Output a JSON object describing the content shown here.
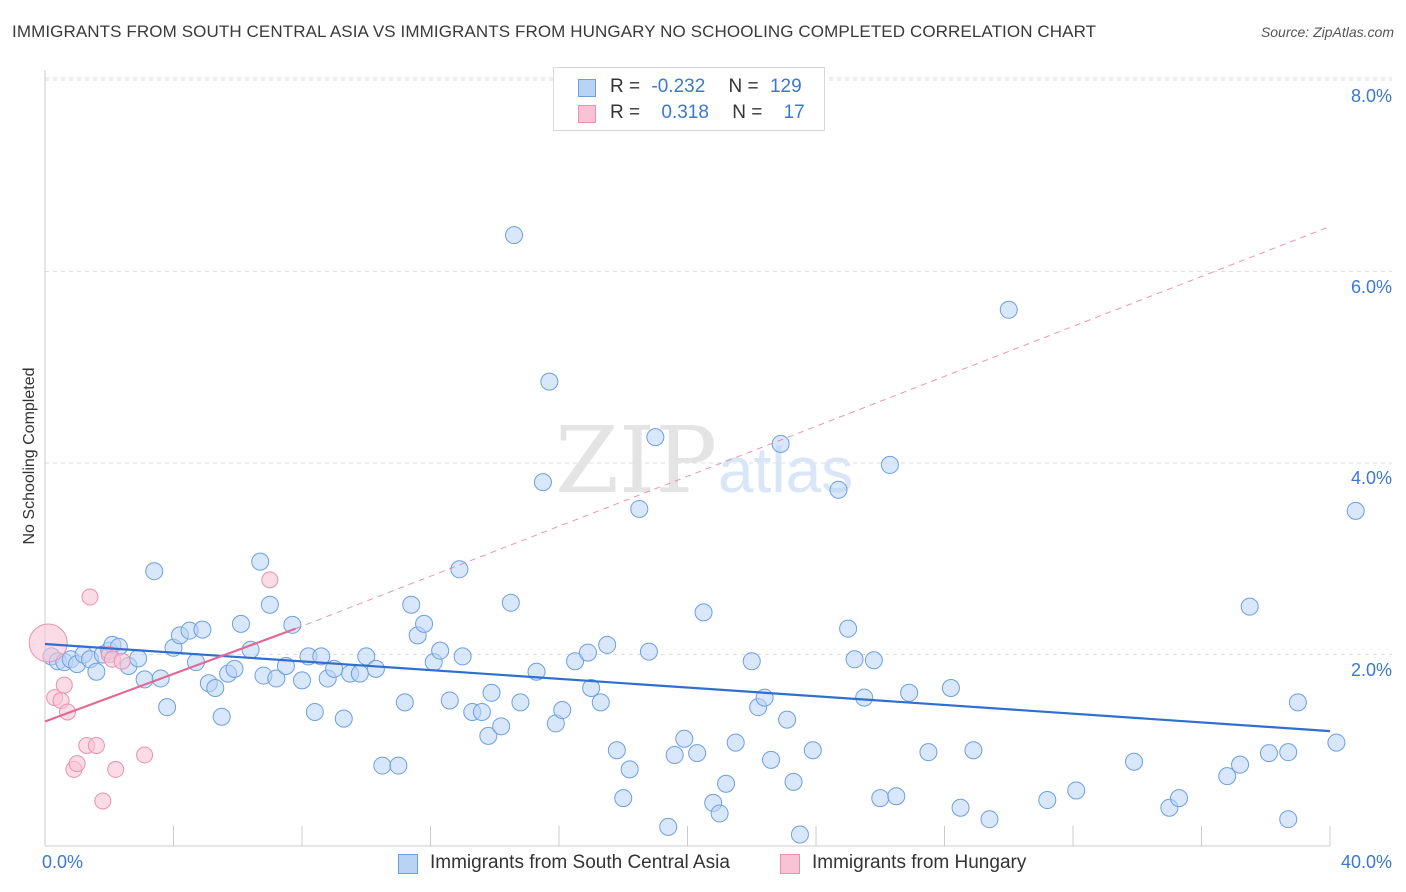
{
  "header": {
    "title": "IMMIGRANTS FROM SOUTH CENTRAL ASIA VS IMMIGRANTS FROM HUNGARY NO SCHOOLING COMPLETED CORRELATION CHART",
    "source": "Source: ZipAtlas.com"
  },
  "watermark": {
    "zip": "ZIP",
    "atlas": "atlas"
  },
  "legend": {
    "rows": [
      {
        "r_label": "R =",
        "r_value": "-0.232",
        "n_label": "N =",
        "n_value": "129"
      },
      {
        "r_label": "R =",
        "r_value": "0.318",
        "n_label": "N =",
        "n_value": "17"
      }
    ]
  },
  "colors": {
    "blue_fill": "#b9d3f5",
    "blue_stroke": "#6d9fe0",
    "blue_line": "#2f6fcf",
    "pink_fill": "#f8c3d4",
    "pink_stroke": "#e892ae",
    "pink_line": "#e06a93",
    "grid": "#dddddd",
    "tick_text": "#3b78d0"
  },
  "chart_data": {
    "type": "scatter",
    "xlabel": "",
    "ylabel": "No Schooling Completed",
    "xlim": [
      0,
      40
    ],
    "ylim": [
      0,
      8
    ],
    "x_tick_labels": [
      "0.0%",
      "40.0%"
    ],
    "y_tick_values": [
      2,
      4,
      6,
      8
    ],
    "y_tick_labels": [
      "2.0%",
      "4.0%",
      "6.0%",
      "8.0%"
    ],
    "grid": "horizontal dashed",
    "legend_placement": "bottom-center",
    "series": [
      {
        "name": "Immigrants from South Central Asia",
        "color": "blue",
        "trend": {
          "x": [
            0,
            40
          ],
          "y": [
            2.11,
            1.2
          ]
        },
        "points": [
          [
            0.2,
            1.98
          ],
          [
            0.4,
            1.93
          ],
          [
            0.6,
            1.92
          ],
          [
            0.8,
            1.95
          ],
          [
            1.0,
            1.9
          ],
          [
            1.2,
            2.0
          ],
          [
            1.4,
            1.95
          ],
          [
            1.6,
            1.82
          ],
          [
            1.8,
            2.0
          ],
          [
            2.0,
            2.04
          ],
          [
            2.1,
            2.1
          ],
          [
            2.3,
            2.08
          ],
          [
            2.6,
            1.88
          ],
          [
            2.9,
            1.96
          ],
          [
            3.1,
            1.74
          ],
          [
            3.4,
            2.87
          ],
          [
            3.6,
            1.75
          ],
          [
            3.8,
            1.45
          ],
          [
            4.0,
            2.07
          ],
          [
            4.2,
            2.2
          ],
          [
            4.5,
            2.25
          ],
          [
            4.7,
            1.92
          ],
          [
            4.9,
            2.26
          ],
          [
            5.1,
            1.7
          ],
          [
            5.3,
            1.65
          ],
          [
            5.5,
            1.35
          ],
          [
            5.7,
            1.8
          ],
          [
            5.9,
            1.85
          ],
          [
            6.1,
            2.32
          ],
          [
            6.4,
            2.05
          ],
          [
            6.7,
            2.97
          ],
          [
            6.8,
            1.78
          ],
          [
            7.0,
            2.52
          ],
          [
            7.2,
            1.75
          ],
          [
            7.5,
            1.88
          ],
          [
            7.7,
            2.31
          ],
          [
            8.0,
            1.73
          ],
          [
            8.2,
            1.98
          ],
          [
            8.4,
            1.4
          ],
          [
            8.6,
            1.98
          ],
          [
            8.8,
            1.75
          ],
          [
            9.0,
            1.85
          ],
          [
            9.3,
            1.33
          ],
          [
            9.5,
            1.8
          ],
          [
            9.8,
            1.8
          ],
          [
            10.0,
            1.98
          ],
          [
            10.3,
            1.85
          ],
          [
            10.5,
            0.84
          ],
          [
            11.0,
            0.84
          ],
          [
            11.2,
            1.5
          ],
          [
            11.4,
            2.52
          ],
          [
            11.6,
            2.2
          ],
          [
            11.8,
            2.32
          ],
          [
            12.1,
            1.92
          ],
          [
            12.3,
            2.04
          ],
          [
            12.6,
            1.52
          ],
          [
            12.9,
            2.89
          ],
          [
            13.0,
            1.98
          ],
          [
            13.3,
            1.4
          ],
          [
            13.6,
            1.4
          ],
          [
            13.8,
            1.15
          ],
          [
            13.9,
            1.6
          ],
          [
            14.2,
            1.25
          ],
          [
            14.5,
            2.54
          ],
          [
            14.6,
            6.38
          ],
          [
            14.8,
            1.5
          ],
          [
            15.3,
            1.82
          ],
          [
            15.5,
            3.8
          ],
          [
            15.7,
            4.85
          ],
          [
            15.9,
            1.28
          ],
          [
            16.1,
            1.42
          ],
          [
            16.5,
            1.93
          ],
          [
            16.9,
            2.02
          ],
          [
            17.0,
            1.65
          ],
          [
            17.3,
            1.5
          ],
          [
            17.5,
            2.1
          ],
          [
            17.8,
            1.0
          ],
          [
            18.0,
            0.5
          ],
          [
            18.2,
            0.8
          ],
          [
            18.5,
            3.52
          ],
          [
            18.8,
            2.03
          ],
          [
            19.0,
            4.27
          ],
          [
            19.4,
            0.2
          ],
          [
            19.6,
            0.95
          ],
          [
            19.9,
            1.12
          ],
          [
            20.3,
            0.97
          ],
          [
            20.5,
            2.44
          ],
          [
            20.8,
            0.45
          ],
          [
            21.0,
            0.34
          ],
          [
            21.2,
            0.65
          ],
          [
            21.5,
            1.08
          ],
          [
            22.0,
            1.93
          ],
          [
            22.2,
            1.45
          ],
          [
            22.4,
            1.55
          ],
          [
            22.6,
            0.9
          ],
          [
            22.9,
            4.2
          ],
          [
            23.1,
            1.32
          ],
          [
            23.3,
            0.67
          ],
          [
            23.5,
            0.12
          ],
          [
            23.9,
            1.0
          ],
          [
            24.7,
            3.72
          ],
          [
            25.0,
            2.27
          ],
          [
            25.2,
            1.95
          ],
          [
            25.5,
            1.55
          ],
          [
            25.8,
            1.94
          ],
          [
            26.0,
            0.5
          ],
          [
            26.3,
            3.98
          ],
          [
            26.5,
            0.52
          ],
          [
            26.9,
            1.6
          ],
          [
            27.5,
            0.98
          ],
          [
            28.2,
            1.65
          ],
          [
            28.5,
            0.4
          ],
          [
            28.9,
            1.0
          ],
          [
            29.4,
            0.28
          ],
          [
            30.0,
            5.6
          ],
          [
            31.2,
            0.48
          ],
          [
            32.1,
            0.58
          ],
          [
            33.9,
            0.88
          ],
          [
            35.0,
            0.4
          ],
          [
            35.3,
            0.5
          ],
          [
            36.8,
            0.73
          ],
          [
            37.2,
            0.85
          ],
          [
            37.5,
            2.5
          ],
          [
            38.1,
            0.97
          ],
          [
            38.7,
            0.98
          ],
          [
            38.7,
            0.28
          ],
          [
            39.0,
            1.5
          ],
          [
            40.2,
            1.08
          ],
          [
            40.8,
            3.5
          ]
        ]
      },
      {
        "name": "Immigrants from Hungary",
        "color": "pink",
        "trend": {
          "x": [
            0,
            7.8
          ],
          "y": [
            1.3,
            2.27
          ],
          "dashed_x": [
            7.8,
            40
          ],
          "dashed_y": [
            2.27,
            6.47
          ]
        },
        "points": [
          [
            0.1,
            2.12
          ],
          [
            0.3,
            1.55
          ],
          [
            0.5,
            1.52
          ],
          [
            0.6,
            1.68
          ],
          [
            0.7,
            1.4
          ],
          [
            0.9,
            0.8
          ],
          [
            1.0,
            0.86
          ],
          [
            1.3,
            1.05
          ],
          [
            1.4,
            2.6
          ],
          [
            1.6,
            1.05
          ],
          [
            1.8,
            0.47
          ],
          [
            2.0,
            2.0
          ],
          [
            2.1,
            1.95
          ],
          [
            2.2,
            0.8
          ],
          [
            2.4,
            1.93
          ],
          [
            3.1,
            0.95
          ],
          [
            7.0,
            2.78
          ]
        ]
      }
    ]
  }
}
